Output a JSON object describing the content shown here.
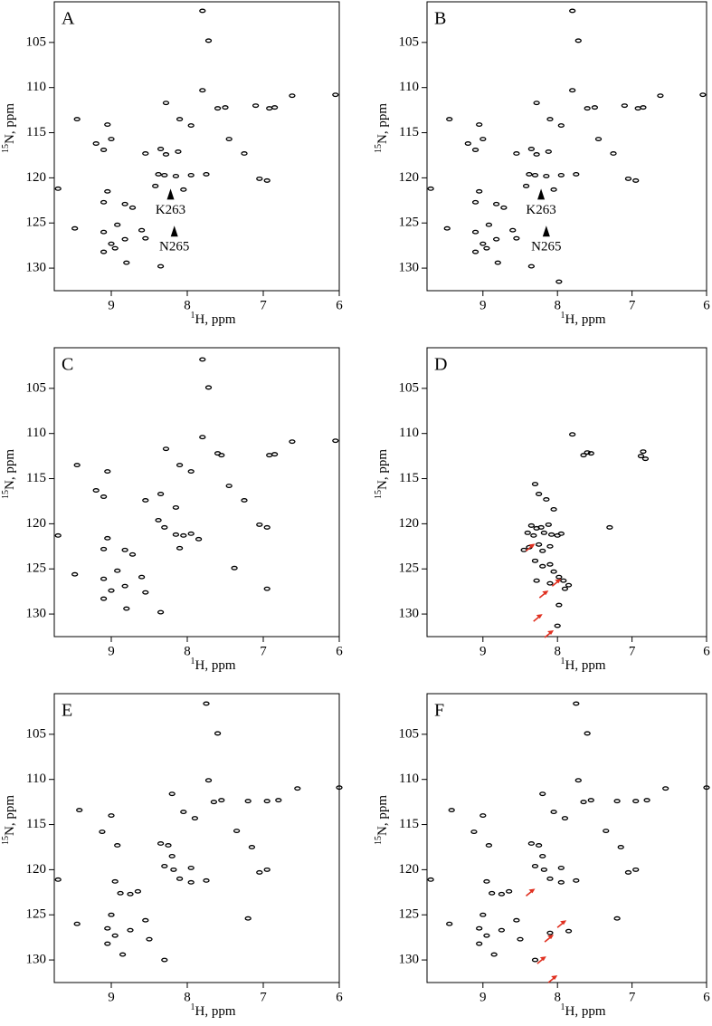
{
  "chart_data": [
    {
      "type": "scatter",
      "title": "A",
      "xlabel_sup": "1",
      "xlabel": "H, ppm",
      "ylabel_sup": "15",
      "ylabel": "N, ppm",
      "xlim": [
        9.75,
        6
      ],
      "ylim": [
        100.5,
        132.5
      ],
      "xticks": [
        9,
        8,
        7,
        6
      ],
      "yticks": [
        105,
        110,
        115,
        120,
        125,
        130
      ],
      "color": "#000000",
      "x": [
        7.8,
        7.72,
        7.8,
        8.28,
        6.62,
        6.05,
        6.85,
        6.92,
        7.1,
        7.5,
        7.6,
        8.1,
        7.95,
        9.45,
        9.05,
        9.2,
        9.1,
        9.0,
        7.45,
        7.25,
        8.55,
        8.35,
        8.28,
        8.12,
        8.38,
        8.3,
        8.15,
        7.95,
        7.75,
        7.05,
        6.95,
        8.05,
        8.42,
        9.05,
        9.1,
        8.82,
        8.72,
        8.92,
        9.48,
        9.7,
        8.6,
        9.1,
        8.82,
        9.0,
        8.95,
        9.1,
        8.8,
        8.35,
        8.55
      ],
      "y": [
        101.5,
        104.8,
        110.3,
        111.7,
        110.9,
        110.8,
        112.2,
        112.3,
        112.0,
        112.2,
        112.3,
        113.5,
        114.2,
        113.5,
        114.1,
        116.2,
        116.9,
        115.7,
        115.7,
        117.3,
        117.3,
        116.8,
        117.4,
        117.1,
        119.6,
        119.7,
        119.8,
        119.7,
        119.6,
        120.1,
        120.3,
        121.3,
        120.9,
        121.5,
        122.7,
        122.9,
        123.3,
        125.2,
        125.6,
        121.2,
        125.8,
        126.0,
        126.8,
        127.3,
        127.8,
        128.2,
        129.4,
        129.8,
        126.7
      ],
      "annotations": [
        {
          "text": "K263",
          "x": 8.22,
          "y": 121.2
        },
        {
          "text": "N265",
          "x": 8.17,
          "y": 125.3
        }
      ]
    },
    {
      "type": "scatter",
      "title": "B",
      "xlabel_sup": "1",
      "xlabel": "H, ppm",
      "ylabel_sup": "15",
      "ylabel": "N, ppm",
      "xlim": [
        9.75,
        6
      ],
      "ylim": [
        100.5,
        132.5
      ],
      "xticks": [
        9,
        8,
        7,
        6
      ],
      "yticks": [
        105,
        110,
        115,
        120,
        125,
        130
      ],
      "color": "#000000",
      "x": [
        7.8,
        7.72,
        7.8,
        8.28,
        6.62,
        6.05,
        6.85,
        6.92,
        7.1,
        7.5,
        7.6,
        8.1,
        7.95,
        9.45,
        9.05,
        9.2,
        9.1,
        9.0,
        7.45,
        7.25,
        8.55,
        8.35,
        8.28,
        8.12,
        8.38,
        8.3,
        8.15,
        7.95,
        7.75,
        7.05,
        6.95,
        8.05,
        8.42,
        9.05,
        9.1,
        8.82,
        8.72,
        8.92,
        9.48,
        9.7,
        8.6,
        9.1,
        8.82,
        9.0,
        8.95,
        9.1,
        8.8,
        8.35,
        8.55,
        7.98
      ],
      "y": [
        101.5,
        104.8,
        110.3,
        111.7,
        110.9,
        110.8,
        112.2,
        112.3,
        112.0,
        112.2,
        112.3,
        113.5,
        114.2,
        113.5,
        114.1,
        116.2,
        116.9,
        115.7,
        115.7,
        117.3,
        117.3,
        116.8,
        117.4,
        117.1,
        119.6,
        119.7,
        119.8,
        119.7,
        119.6,
        120.1,
        120.3,
        121.3,
        120.9,
        121.5,
        122.7,
        122.9,
        123.3,
        125.2,
        125.6,
        121.2,
        125.8,
        126.0,
        126.8,
        127.3,
        127.8,
        128.2,
        129.4,
        129.8,
        126.7,
        131.5
      ],
      "annotations": [
        {
          "text": "K263",
          "x": 8.22,
          "y": 121.2
        },
        {
          "text": "N265",
          "x": 8.15,
          "y": 125.3
        }
      ]
    },
    {
      "type": "scatter",
      "title": "C",
      "xlabel_sup": "1",
      "xlabel": "H, ppm",
      "ylabel_sup": "15",
      "ylabel": "N, ppm",
      "xlim": [
        9.75,
        6
      ],
      "ylim": [
        100.5,
        132.5
      ],
      "xticks": [
        9,
        8,
        7,
        6
      ],
      "yticks": [
        105,
        110,
        115,
        120,
        125,
        130
      ],
      "color": "#000000",
      "x": [
        7.8,
        7.72,
        7.8,
        8.28,
        6.62,
        6.05,
        6.85,
        6.92,
        7.6,
        7.55,
        8.1,
        7.95,
        9.45,
        9.05,
        9.2,
        9.1,
        7.45,
        7.25,
        8.55,
        8.35,
        8.15,
        8.38,
        8.3,
        8.15,
        7.95,
        8.05,
        8.1,
        7.85,
        7.05,
        6.95,
        9.05,
        9.1,
        8.82,
        8.72,
        8.92,
        9.48,
        9.7,
        8.6,
        9.1,
        8.82,
        9.0,
        9.1,
        8.8,
        8.35,
        8.55,
        7.38,
        6.95
      ],
      "y": [
        101.8,
        104.9,
        110.4,
        111.7,
        110.9,
        110.8,
        112.3,
        112.4,
        112.2,
        112.4,
        113.5,
        114.2,
        113.5,
        114.2,
        116.3,
        117.0,
        115.8,
        117.4,
        117.4,
        116.7,
        118.2,
        119.6,
        120.4,
        121.2,
        121.1,
        121.3,
        122.7,
        121.7,
        120.1,
        120.4,
        121.6,
        122.8,
        122.9,
        123.4,
        125.2,
        125.6,
        121.3,
        125.9,
        126.1,
        126.9,
        127.4,
        128.3,
        129.4,
        129.8,
        127.6,
        124.9,
        127.2
      ]
    },
    {
      "type": "scatter",
      "title": "D",
      "xlabel_sup": "1",
      "xlabel": "H, ppm",
      "ylabel_sup": "15",
      "ylabel": "N, ppm",
      "xlim": [
        9.75,
        6
      ],
      "ylim": [
        100.5,
        132.5
      ],
      "xticks": [
        9,
        8,
        7,
        6
      ],
      "yticks": [
        105,
        110,
        115,
        120,
        125,
        130
      ],
      "color": "#000000",
      "x": [
        7.8,
        7.6,
        7.55,
        7.65,
        6.85,
        6.88,
        6.82,
        8.3,
        8.25,
        8.15,
        8.05,
        8.35,
        8.28,
        8.22,
        8.12,
        8.4,
        8.32,
        8.18,
        8.08,
        8.0,
        7.95,
        8.38,
        8.25,
        8.1,
        8.3,
        8.2,
        8.1,
        8.05,
        7.98,
        7.92,
        7.85,
        8.28,
        8.45,
        7.9,
        8.1,
        7.98,
        8.0,
        7.3,
        8.2
      ],
      "y": [
        110.1,
        112.1,
        112.2,
        112.4,
        112.0,
        112.5,
        112.8,
        115.6,
        116.7,
        117.3,
        118.4,
        120.2,
        120.5,
        120.4,
        120.1,
        121.0,
        121.3,
        121.0,
        121.2,
        121.3,
        121.1,
        122.6,
        122.3,
        122.5,
        124.1,
        124.7,
        124.5,
        125.3,
        125.9,
        126.3,
        126.8,
        126.3,
        122.9,
        127.2,
        126.6,
        129.0,
        131.3,
        120.4,
        123.0
      ],
      "arrows": [
        {
          "x": 8.3,
          "y": 122.2
        },
        {
          "x": 8.12,
          "y": 127.4
        },
        {
          "x": 7.95,
          "y": 126.1
        },
        {
          "x": 8.2,
          "y": 130.0
        },
        {
          "x": 8.05,
          "y": 131.8
        }
      ],
      "arrow_color": "#e03020"
    },
    {
      "type": "scatter",
      "title": "E",
      "xlabel_sup": "1",
      "xlabel": "H, ppm",
      "ylabel_sup": "15",
      "ylabel": "N, ppm",
      "xlim": [
        9.75,
        6
      ],
      "ylim": [
        100.5,
        132.5
      ],
      "xticks": [
        9,
        8,
        7,
        6
      ],
      "yticks": [
        105,
        110,
        115,
        120,
        125,
        130
      ],
      "color": "#000000",
      "x": [
        7.75,
        7.6,
        7.72,
        8.2,
        6.55,
        6.0,
        6.8,
        6.95,
        7.2,
        7.55,
        7.65,
        8.05,
        7.9,
        9.42,
        9.0,
        9.12,
        8.92,
        7.35,
        7.15,
        8.35,
        8.25,
        8.2,
        8.3,
        8.18,
        7.95,
        7.75,
        6.95,
        7.05,
        7.95,
        8.1,
        8.95,
        8.88,
        8.75,
        8.65,
        9.0,
        9.45,
        9.7,
        8.55,
        9.05,
        8.75,
        8.95,
        9.05,
        8.85,
        8.3,
        8.5,
        7.2
      ],
      "y": [
        101.6,
        104.9,
        110.1,
        111.6,
        111.0,
        110.9,
        112.3,
        112.4,
        112.4,
        112.3,
        112.5,
        113.6,
        114.3,
        113.4,
        114.0,
        115.8,
        117.3,
        115.7,
        117.5,
        117.1,
        117.3,
        118.5,
        119.6,
        120.0,
        119.8,
        121.2,
        120.0,
        120.3,
        121.4,
        121.0,
        121.3,
        122.6,
        122.7,
        122.4,
        125.0,
        126.0,
        121.1,
        125.6,
        126.5,
        126.7,
        127.3,
        128.2,
        129.4,
        130.0,
        127.7,
        125.4
      ]
    },
    {
      "type": "scatter",
      "title": "F",
      "xlabel_sup": "1",
      "xlabel": "H, ppm",
      "ylabel_sup": "15",
      "ylabel": "N, ppm",
      "xlim": [
        9.75,
        6
      ],
      "ylim": [
        100.5,
        132.5
      ],
      "xticks": [
        9,
        8,
        7,
        6
      ],
      "yticks": [
        105,
        110,
        115,
        120,
        125,
        130
      ],
      "color": "#000000",
      "x": [
        7.75,
        7.6,
        7.72,
        8.2,
        6.55,
        6.0,
        6.8,
        6.95,
        7.2,
        7.55,
        7.65,
        8.05,
        7.9,
        9.42,
        9.0,
        9.12,
        8.92,
        7.35,
        7.15,
        8.35,
        8.25,
        8.2,
        8.3,
        8.18,
        7.95,
        7.75,
        6.95,
        7.05,
        7.95,
        8.1,
        8.95,
        8.88,
        8.75,
        8.65,
        9.0,
        9.45,
        9.7,
        8.55,
        9.05,
        8.75,
        8.95,
        9.05,
        8.85,
        8.3,
        8.5,
        7.2,
        8.1,
        7.85
      ],
      "y": [
        101.6,
        104.9,
        110.1,
        111.6,
        111.0,
        110.9,
        112.3,
        112.4,
        112.4,
        112.3,
        112.5,
        113.6,
        114.3,
        113.4,
        114.0,
        115.8,
        117.3,
        115.7,
        117.5,
        117.1,
        117.3,
        118.5,
        119.6,
        120.0,
        119.8,
        121.2,
        120.0,
        120.3,
        121.4,
        121.0,
        121.3,
        122.6,
        122.7,
        122.4,
        125.0,
        126.0,
        121.1,
        125.6,
        126.5,
        126.7,
        127.3,
        128.2,
        129.4,
        130.0,
        127.7,
        125.4,
        127.0,
        126.8
      ],
      "arrows": [
        {
          "x": 8.3,
          "y": 122.1
        },
        {
          "x": 8.05,
          "y": 127.2
        },
        {
          "x": 7.88,
          "y": 125.6
        },
        {
          "x": 8.15,
          "y": 129.6
        },
        {
          "x": 8.0,
          "y": 131.7
        }
      ],
      "arrow_color": "#e03020"
    }
  ]
}
